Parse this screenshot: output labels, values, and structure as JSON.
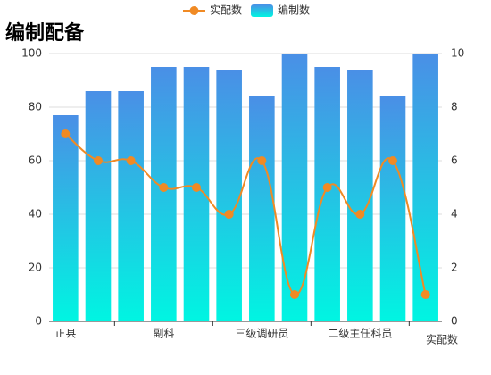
{
  "chart_data": {
    "type": "bar-line",
    "title": "编制配备",
    "x_label": "实配数",
    "categories": [
      "正县",
      null,
      null,
      "副科",
      null,
      null,
      "三级调研员",
      null,
      null,
      "二级主任科员",
      null,
      null
    ],
    "series": [
      {
        "name": "实配数",
        "type": "line",
        "axis": "y2",
        "color": "#f08a24",
        "values": [
          7,
          6,
          6,
          5,
          5,
          4,
          6,
          1,
          5,
          4,
          6,
          1
        ]
      },
      {
        "name": "编制数",
        "type": "bar",
        "axis": "y",
        "color": [
          "#4a8fe6",
          "#00f5e2"
        ],
        "values": [
          77,
          86,
          86,
          95,
          95,
          94,
          84,
          100,
          95,
          94,
          84,
          100
        ]
      }
    ],
    "ylim": [
      0,
      100
    ],
    "yticks": [
      0,
      20,
      40,
      60,
      80,
      100
    ],
    "y2lim": [
      0,
      10
    ],
    "y2ticks": [
      0,
      2,
      4,
      6,
      8,
      10
    ],
    "grid": true,
    "legend": "top"
  }
}
